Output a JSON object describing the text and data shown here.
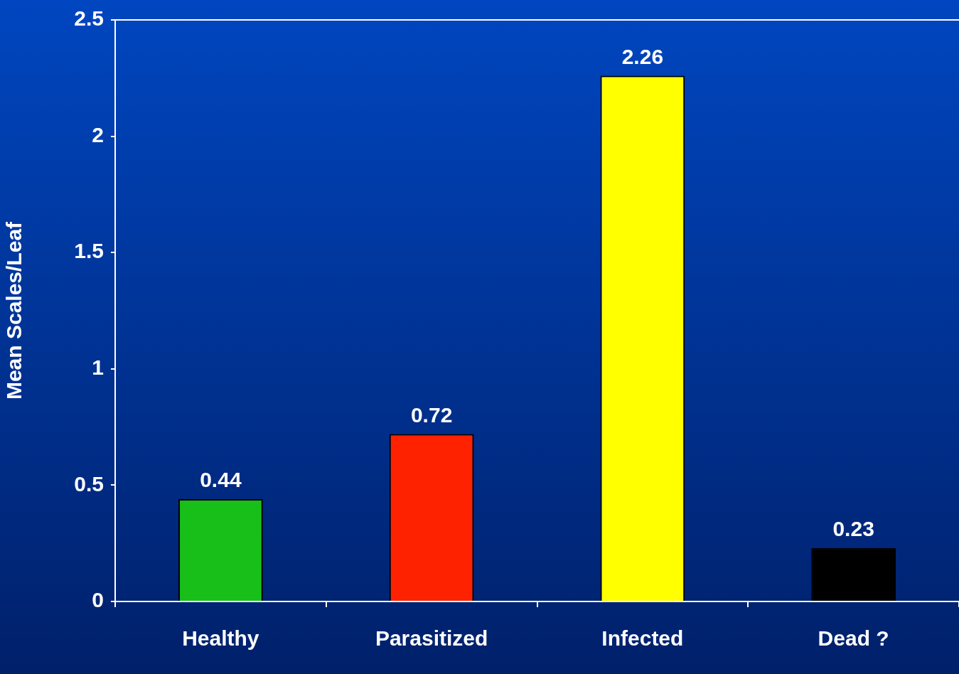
{
  "chart_data": {
    "type": "bar",
    "ylabel": "Mean Scales/Leaf",
    "categories": [
      "Healthy",
      "Parasitized",
      "Infected",
      "Dead ?"
    ],
    "values": [
      0.44,
      0.72,
      2.26,
      0.23
    ],
    "colors": [
      "#18bf18",
      "#ff2200",
      "#ffff00",
      "#000000"
    ],
    "ylim": [
      0,
      2.5
    ],
    "yticks": [
      0,
      0.5,
      1,
      1.5,
      2,
      2.5
    ],
    "data_labels": true,
    "legend": false
  }
}
